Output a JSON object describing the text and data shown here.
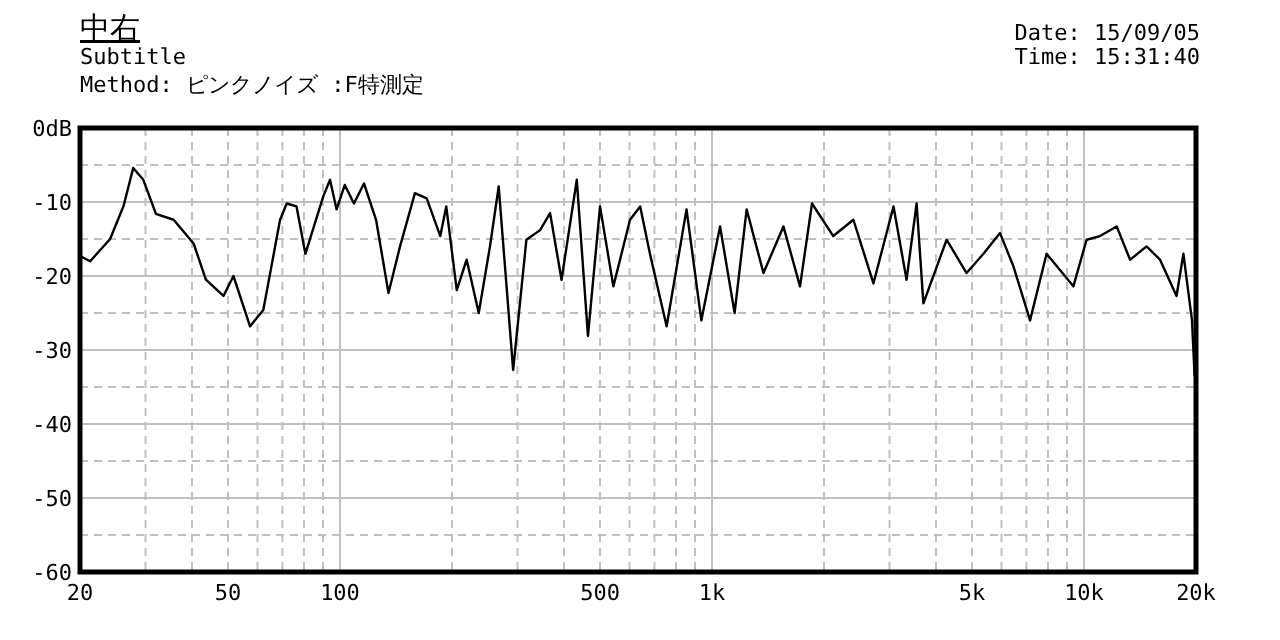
{
  "chart_data": {
    "type": "line",
    "title": "中右",
    "subtitle": "Subtitle",
    "annotations": [
      "Method: ピンクノイズ :F特測定",
      "Date: 15/09/05",
      "Time: 15:31:40"
    ],
    "log": "x",
    "grid": true,
    "marker": "none",
    "line_style": "solid",
    "xlim": [
      20,
      20000
    ],
    "xticks": [
      20,
      {
        "value": 30,
        "label": null
      },
      {
        "value": 40,
        "label": null
      },
      50,
      {
        "value": 60,
        "label": null
      },
      {
        "value": 70,
        "label": null
      },
      {
        "value": 80,
        "label": null
      },
      {
        "value": 90,
        "label": null
      },
      100,
      {
        "value": 200,
        "label": null
      },
      {
        "value": 300,
        "label": null
      },
      {
        "value": 400,
        "label": null
      },
      500,
      {
        "value": 600,
        "label": null
      },
      {
        "value": 700,
        "label": null
      },
      {
        "value": 800,
        "label": null
      },
      {
        "value": 900,
        "label": null
      },
      {
        "value": 1000,
        "label": "1k"
      },
      {
        "value": 2000,
        "label": null
      },
      {
        "value": 3000,
        "label": null
      },
      {
        "value": 4000,
        "label": null
      },
      {
        "value": 5000,
        "label": "5k"
      },
      {
        "value": 6000,
        "label": null
      },
      {
        "value": 7000,
        "label": null
      },
      {
        "value": 8000,
        "label": null
      },
      {
        "value": 9000,
        "label": null
      },
      {
        "value": 10000,
        "label": "10k"
      },
      {
        "value": 20000,
        "label": "20k"
      }
    ],
    "ylim": [
      -60,
      0
    ],
    "yticks": [
      -60,
      {
        "value": -55,
        "label": null
      },
      -50,
      {
        "value": -45,
        "label": null
      },
      -40,
      {
        "value": -35,
        "label": null
      },
      -30,
      {
        "value": -25,
        "label": null
      },
      -20,
      {
        "value": -15,
        "label": null
      },
      -10,
      {
        "value": -5,
        "label": null
      },
      {
        "value": 0,
        "label": "0dB"
      }
    ],
    "series": [
      {
        "color": "#000000",
        "x": [
          20,
          21.3,
          24.1,
          26.2,
          27.8,
          29.6,
          32,
          35.7,
          40.4,
          43.6,
          48.6,
          51.7,
          57.3,
          62.2,
          69,
          71.9,
          76.4,
          80.7,
          90.2,
          94,
          97.9,
          103,
          109,
          116,
          125,
          135,
          145,
          159,
          171,
          186,
          193,
          206,
          219,
          236,
          253,
          267,
          292,
          317,
          345,
          367,
          394,
          433,
          464,
          500,
          543,
          602,
          641,
          681,
          755,
          854,
          936,
          1051,
          1150,
          1239,
          1375,
          1556,
          1724,
          1857,
          2118,
          2399,
          2716,
          3075,
          3334,
          3548,
          3700,
          4272,
          4834,
          5366,
          5946,
          6460,
          7160,
          7932,
          9362,
          10160,
          11040,
          12240,
          13300,
          14730,
          16010,
          17730,
          18500,
          19510,
          19830
        ],
        "values": [
          -17.3,
          -18,
          -15,
          -10.5,
          -5.4,
          -7,
          -11.6,
          -12.4,
          -15.6,
          -20.5,
          -22.7,
          -20,
          -26.8,
          -24.6,
          -12.4,
          -10.2,
          -10.6,
          -17,
          -9.2,
          -7,
          -11,
          -7.7,
          -10.2,
          -7.5,
          -12.4,
          -22.3,
          -16,
          -8.8,
          -9.5,
          -14.6,
          -10.6,
          -21.9,
          -17.8,
          -25,
          -16,
          -7.9,
          -32.7,
          -15.1,
          -13.8,
          -11.5,
          -20.5,
          -7,
          -28.1,
          -10.6,
          -21.4,
          -12.4,
          -10.6,
          -17,
          -26.8,
          -11,
          -26,
          -13.3,
          -25,
          -11,
          -19.6,
          -13.3,
          -21.4,
          -10.2,
          -14.6,
          -12.4,
          -21,
          -10.6,
          -20.5,
          -10.2,
          -23.7,
          -15.1,
          -19.6,
          -17,
          -14.2,
          -18.7,
          -26,
          -17,
          -21.4,
          -15.1,
          -14.6,
          -13.3,
          -17.8,
          -16,
          -17.8,
          -22.7,
          -17,
          -26,
          -33.5
        ]
      }
    ]
  }
}
